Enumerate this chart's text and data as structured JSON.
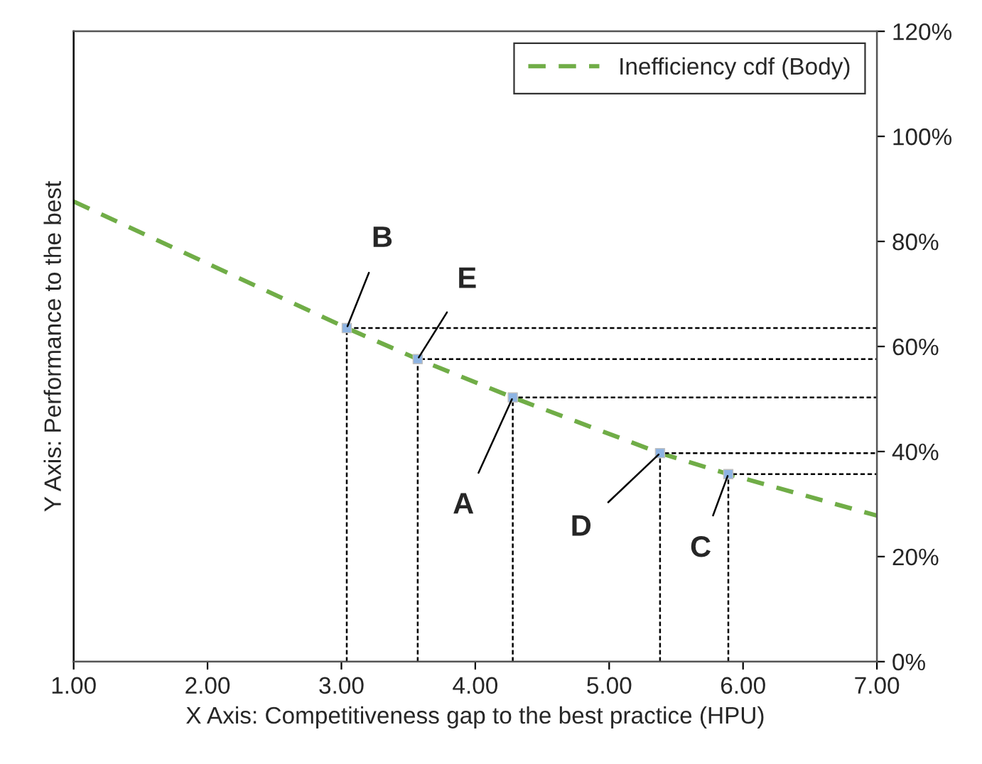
{
  "chart_data": {
    "type": "line",
    "xlabel": "X Axis: Competitiveness gap to the best practice (HPU)",
    "ylabel": "Y Axis: Performance to the best",
    "xlim": [
      1,
      7
    ],
    "xticks": [
      {
        "value": 1,
        "label": "1.00"
      },
      {
        "value": 2,
        "label": "2.00"
      },
      {
        "value": 3,
        "label": "3.00"
      },
      {
        "value": 4,
        "label": "4.00"
      },
      {
        "value": 5,
        "label": "5.00"
      },
      {
        "value": 6,
        "label": "6.00"
      },
      {
        "value": 7,
        "label": "7.00"
      }
    ],
    "ylim": [
      0,
      120
    ],
    "yticks": [
      {
        "value": 0,
        "label": "0%"
      },
      {
        "value": 20,
        "label": "20%"
      },
      {
        "value": 40,
        "label": "40%"
      },
      {
        "value": 60,
        "label": "60%"
      },
      {
        "value": 80,
        "label": "80%"
      },
      {
        "value": 100,
        "label": "100%"
      },
      {
        "value": 120,
        "label": "120%"
      }
    ],
    "grid": false,
    "legend": "top right",
    "series": [
      {
        "name": "Inefficiency cdf (Body)",
        "line_style": "dashed",
        "marker": "none",
        "color": "#70ad47",
        "x": [
          1,
          3.04,
          3.57,
          4.28,
          5.38,
          5.89,
          7
        ],
        "values": [
          87.6,
          63.5,
          57.6,
          50.3,
          39.7,
          35.7,
          27.8
        ]
      },
      {
        "line_style": "dotted",
        "marker": "none",
        "color": "#000000",
        "x": [
          3.04,
          3.04,
          7
        ],
        "values": [
          0,
          63.5,
          63.5
        ]
      },
      {
        "line_style": "dotted",
        "marker": "none",
        "color": "#000000",
        "x": [
          3.57,
          3.57,
          7
        ],
        "values": [
          0,
          57.6,
          57.6
        ]
      },
      {
        "line_style": "dotted",
        "marker": "none",
        "color": "#000000",
        "x": [
          4.28,
          4.28,
          7
        ],
        "values": [
          0,
          50.3,
          50.3
        ]
      },
      {
        "line_style": "dotted",
        "marker": "none",
        "color": "#000000",
        "x": [
          5.38,
          5.38,
          7
        ],
        "values": [
          0,
          39.7,
          39.7
        ]
      },
      {
        "line_style": "dotted",
        "marker": "none",
        "color": "#000000",
        "x": [
          5.89,
          5.89,
          7
        ],
        "values": [
          0,
          35.7,
          35.7
        ]
      },
      {
        "type": "scatter",
        "marker": "square",
        "color": "#8eb4e3",
        "x": [
          3.04,
          3.57,
          4.28,
          5.38,
          5.89
        ],
        "values": [
          63.5,
          57.6,
          50.3,
          39.7,
          35.7
        ]
      }
    ],
    "annotations": [
      {
        "text": "B",
        "x": 3.04,
        "y": 63.5
      },
      {
        "text": "E",
        "x": 3.57,
        "y": 57.6
      },
      {
        "text": "A",
        "x": 4.28,
        "y": 50.3
      },
      {
        "text": "D",
        "x": 5.38,
        "y": 39.7
      },
      {
        "text": "C",
        "x": 5.89,
        "y": 35.7
      }
    ]
  }
}
